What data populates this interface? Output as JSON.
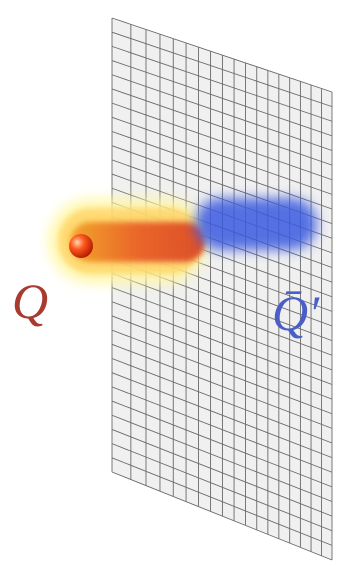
{
  "labels": {
    "quark": "Q",
    "antiquark": "Q̄′"
  }
}
